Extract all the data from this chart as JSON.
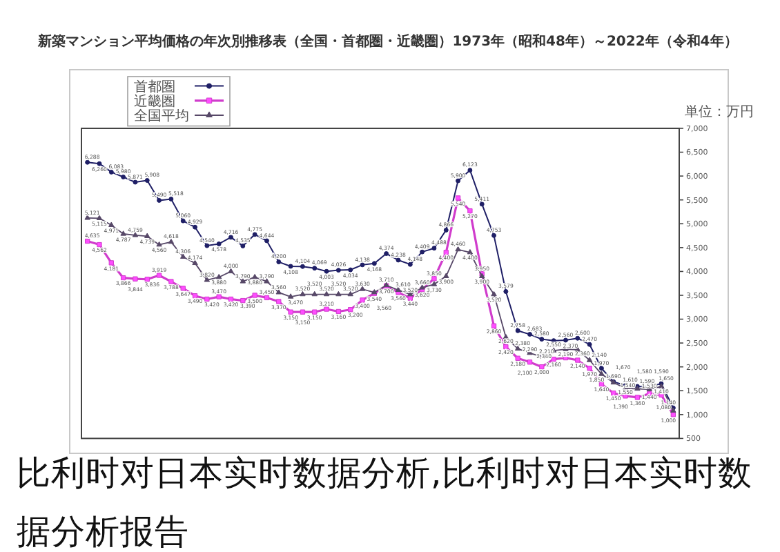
{
  "chart_data": {
    "type": "line",
    "title": "新築マンション平均価格の年次別推移表（全国・首都圏・近畿圏）1973年（昭和48年）～2022年（令和4年）",
    "ylabel": "単位：万円",
    "categories": [
      null,
      null,
      null,
      null,
      null,
      null,
      null,
      null,
      null,
      null,
      null,
      null,
      null,
      null,
      null,
      null,
      null,
      null,
      null,
      null,
      null,
      null,
      null,
      null,
      null,
      null,
      null,
      null,
      null,
      null,
      null,
      null,
      null,
      null,
      null,
      null,
      null,
      null,
      null,
      null,
      null,
      null,
      null,
      null,
      null,
      null,
      null,
      null,
      null,
      null
    ],
    "series": [
      {
        "name": "首都圏",
        "color": "#1f1f66",
        "marker": "circle",
        "values": [
          6288,
          6260,
          6083,
          5980,
          5871,
          5908,
          5490,
          5518,
          5060,
          4929,
          4540,
          4578,
          4716,
          4535,
          4775,
          4644,
          4200,
          4108,
          4104,
          4069,
          4003,
          4026,
          4034,
          4138,
          4168,
          4374,
          4238,
          4148,
          4409,
          4488,
          4866,
          5900,
          6123,
          5411,
          4753,
          3579,
          2758,
          2683,
          2580,
          2550,
          2560,
          2600,
          2470,
          1970,
          1690,
          1610,
          1590,
          1580,
          1650,
          1140
        ],
        "value_labels": [
          "6,288",
          "6,260",
          "6,083",
          "5,980",
          "5,871",
          "5,908",
          "5,490",
          "5,518",
          "5,060",
          "4,929",
          "4,540",
          "4,578",
          "4,716",
          "4,535",
          "4,775",
          "4,644",
          "4,200",
          "4,108",
          "4,104",
          "4,069",
          "4,003",
          "4,026",
          "4,034",
          "4,138",
          "4,168",
          "4,374",
          "4,238",
          "4,148",
          "4,409",
          "4,488",
          "4,866",
          "5,900",
          "6,123",
          "5,411",
          "4,753",
          "3,579",
          "2,758",
          "2,683",
          "2,580",
          "2,550",
          "2,560",
          "2,600",
          "2,470",
          "1,970",
          "1,690",
          "1,610",
          "1,590",
          "1,580",
          "1,650",
          "1,140"
        ]
      },
      {
        "name": "近畿圏",
        "color": "#d03ccc",
        "marker": "square",
        "values": [
          4635,
          4562,
          4181,
          3866,
          3844,
          3836,
          3919,
          3788,
          3647,
          3490,
          3420,
          3470,
          3420,
          3390,
          3500,
          3450,
          3370,
          3150,
          3150,
          3150,
          3210,
          3160,
          3200,
          3400,
          3540,
          3700,
          3560,
          3440,
          3620,
          3850,
          4400,
          5540,
          5270,
          3950,
          2860,
          2420,
          2180,
          2100,
          2000,
          2160,
          2190,
          2140,
          1970,
          1640,
          1450,
          1390,
          1360,
          1440,
          1410,
          1000
        ],
        "value_labels": [
          "4,635",
          "4,562",
          "4,181",
          "3,866",
          "3,844",
          "3,836",
          "3,919",
          "3,788",
          "3,647",
          "3,490",
          "3,420",
          "3,470",
          "3,420",
          "3,390",
          "3,500",
          "3,450",
          "3,370",
          "3,150",
          "3,150",
          "3,150",
          "3,210",
          "3,160",
          "3,200",
          "3,400",
          "3,540",
          "3,700",
          "3,560",
          "3,440",
          "3,620",
          "3,850",
          "4,400",
          "5,540",
          "5,270",
          "3,950",
          "2,860",
          "2,420",
          "2,180",
          "2,100",
          "2,000",
          "2,160",
          "2,190",
          "2,140",
          "1,970",
          "1,640",
          "1,450",
          "1,390",
          "1,360",
          "1,440",
          "1,410",
          "1,000"
        ]
      },
      {
        "name": "全国平均",
        "color": "#574868",
        "marker": "triangle",
        "values": [
          5121,
          5115,
          4971,
          4787,
          4759,
          4739,
          4560,
          4618,
          4306,
          4174,
          3820,
          3880,
          4000,
          3790,
          3880,
          3790,
          3560,
          3470,
          3520,
          3520,
          3520,
          3520,
          3520,
          3630,
          3560,
          3710,
          3610,
          3520,
          3660,
          3730,
          3900,
          4460,
          4400,
          3900,
          3520,
          2620,
          2380,
          2290,
          2210,
          2340,
          2370,
          2360,
          2140,
          1850,
          1670,
          1550,
          1540,
          1530,
          1590,
          1080
        ],
        "value_labels": [
          "5,121",
          "5,115",
          "4,971",
          "4,787",
          "4,759",
          "4,739",
          "4,560",
          "4,618",
          "4,306",
          "4,174",
          "3,820",
          "3,880",
          "4,000",
          "3,790",
          "3,880",
          "3,790",
          "3,560",
          "3,470",
          "3,520",
          "3,520",
          "3,520",
          "3,520",
          "3,520",
          "3,630",
          "3,560",
          "3,710",
          "3,610",
          "3,520",
          "3,660",
          "3,730",
          "3,900",
          "4,460",
          "4,400",
          "3,900",
          "3,520",
          "2,620",
          "2,380",
          "2,290",
          "2,210",
          "2,340",
          "2,370",
          "2,360",
          "2,140",
          "1,850",
          "1,670",
          "1,550",
          "1,540",
          "1,530",
          "1,590",
          "1,080"
        ]
      }
    ],
    "ylim": [
      500,
      7000
    ],
    "yticks": [
      500,
      {
        "value": 1000,
        "label": "1,000"
      },
      {
        "value": 1500,
        "label": "1,500"
      },
      {
        "value": 2000,
        "label": "2,000"
      },
      {
        "value": 2500,
        "label": "2,500"
      },
      {
        "value": 3000,
        "label": "3,000"
      },
      {
        "value": 3500,
        "label": "3,500"
      },
      {
        "value": 4000,
        "label": "4,000"
      },
      {
        "value": 4500,
        "label": "4,500"
      },
      {
        "value": 5000,
        "label": "5,000"
      },
      {
        "value": 5500,
        "label": "5,500"
      },
      {
        "value": 6000,
        "label": "6,000"
      },
      {
        "value": 6500,
        "label": "6,500"
      },
      {
        "value": 7000,
        "label": "7,000"
      }
    ],
    "legend": "top left",
    "annotations": [
      "比利时对日本实时数据分析,比利时对日本实时数据分析报告"
    ]
  }
}
